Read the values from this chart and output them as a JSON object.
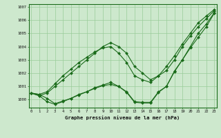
{
  "background_color": "#cde8cd",
  "plot_bg_color": "#cde8cd",
  "grid_color": "#99cc99",
  "line_color": "#1a6b1a",
  "marker_color": "#1a6b1a",
  "title": "Graphe pression niveau de la mer (hPa)",
  "x_ticks": [
    0,
    1,
    2,
    3,
    4,
    5,
    6,
    7,
    8,
    9,
    10,
    11,
    12,
    13,
    14,
    15,
    16,
    17,
    18,
    19,
    20,
    21,
    22,
    23
  ],
  "ylim": [
    999.4,
    1007.2
  ],
  "xlim": [
    -0.3,
    23.3
  ],
  "yticks": [
    1000,
    1001,
    1002,
    1003,
    1004,
    1005,
    1006,
    1007
  ],
  "series1": [
    1000.5,
    1000.4,
    1000.1,
    999.7,
    999.9,
    1000.1,
    1000.4,
    1000.6,
    1000.9,
    1001.1,
    1001.3,
    1001.0,
    1000.6,
    999.85,
    999.8,
    999.8,
    1000.6,
    1001.0,
    1002.1,
    1003.0,
    1003.9,
    1004.7,
    1005.5,
    1006.5
  ],
  "series2": [
    1000.5,
    1000.3,
    999.85,
    999.65,
    999.85,
    1000.1,
    1000.35,
    1000.6,
    1000.85,
    1001.05,
    1001.15,
    1001.0,
    1000.55,
    999.8,
    999.75,
    999.75,
    1000.55,
    1001.0,
    1002.15,
    1003.0,
    1004.0,
    1005.0,
    1005.7,
    1006.55
  ],
  "series3": [
    1000.5,
    1000.3,
    1000.5,
    1001.0,
    1001.5,
    1002.0,
    1002.5,
    1003.0,
    1003.5,
    1004.0,
    1004.3,
    1004.0,
    1003.5,
    1002.5,
    1002.0,
    1001.5,
    1001.8,
    1002.2,
    1003.0,
    1004.0,
    1004.8,
    1005.5,
    1006.1,
    1006.7
  ],
  "series4": [
    1000.5,
    1000.4,
    1000.6,
    1001.2,
    1001.8,
    1002.3,
    1002.8,
    1003.2,
    1003.6,
    1003.9,
    1004.0,
    1003.5,
    1002.8,
    1001.8,
    1001.5,
    1001.3,
    1001.8,
    1002.5,
    1003.3,
    1004.2,
    1005.0,
    1005.8,
    1006.3,
    1006.8
  ]
}
